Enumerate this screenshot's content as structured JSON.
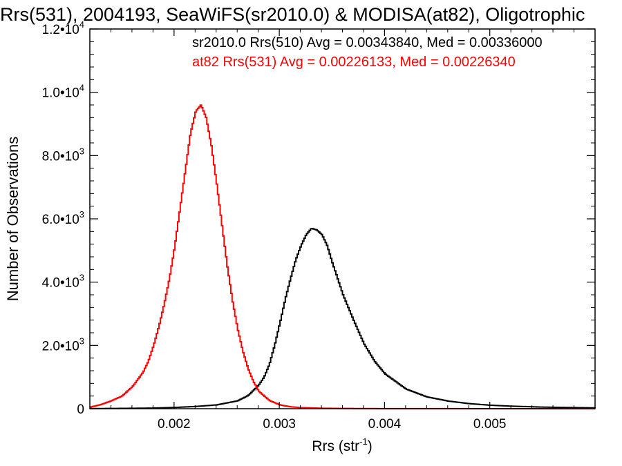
{
  "chart_data": {
    "type": "line",
    "title": "Rrs(531), 2004193, SeaWiFS(sr2010.0) & MODISA(at82), Oligotrophic",
    "xlabel": "Rrs (str",
    "xlabel_sup": "-1",
    "xlabel_end": ")",
    "ylabel": "Number of Observations",
    "xlim": [
      0.0012,
      0.006
    ],
    "ylim": [
      0,
      12000
    ],
    "x_ticks": [
      {
        "value": 0.002,
        "label": "0.002"
      },
      {
        "value": 0.003,
        "label": "0.003"
      },
      {
        "value": 0.004,
        "label": "0.004"
      },
      {
        "value": 0.005,
        "label": "0.005"
      }
    ],
    "y_ticks": [
      {
        "value": 0,
        "mantissa": "0",
        "exp": ""
      },
      {
        "value": 2000,
        "mantissa": "2.0•10",
        "exp": "3"
      },
      {
        "value": 4000,
        "mantissa": "4.0•10",
        "exp": "3"
      },
      {
        "value": 6000,
        "mantissa": "6.0•10",
        "exp": "3"
      },
      {
        "value": 8000,
        "mantissa": "8.0•10",
        "exp": "3"
      },
      {
        "value": 10000,
        "mantissa": "1.0•10",
        "exp": "4"
      },
      {
        "value": 12000,
        "mantissa": "1.2•10",
        "exp": "4"
      }
    ],
    "grid": false,
    "legend_position": "top-right",
    "series": [
      {
        "name": "sr2010.0 Rrs(510) Avg = 0.00343840, Med = 0.00336000",
        "color": "#000000",
        "style": "step",
        "x": [
          0.00125,
          0.0015,
          0.0018,
          0.002,
          0.0022,
          0.0024,
          0.0026,
          0.0027,
          0.0028,
          0.00285,
          0.0029,
          0.00295,
          0.003,
          0.00305,
          0.0031,
          0.00315,
          0.0032,
          0.00325,
          0.0033,
          0.00335,
          0.0034,
          0.00345,
          0.0035,
          0.00355,
          0.0036,
          0.0037,
          0.0038,
          0.0039,
          0.004,
          0.0042,
          0.0044,
          0.0046,
          0.0048,
          0.005,
          0.0052,
          0.0055,
          0.0058,
          0.006
        ],
        "y": [
          5,
          10,
          20,
          40,
          70,
          120,
          250,
          420,
          750,
          1000,
          1400,
          2000,
          2700,
          3450,
          4100,
          4700,
          5150,
          5500,
          5700,
          5650,
          5500,
          5150,
          4600,
          4100,
          3600,
          2800,
          2050,
          1500,
          1100,
          620,
          370,
          240,
          160,
          110,
          80,
          50,
          35,
          25
        ]
      },
      {
        "name": "at82 Rrs(531) Avg = 0.00226133, Med = 0.00226340",
        "color": "#ff0000",
        "style": "step",
        "x": [
          0.0012,
          0.0013,
          0.0014,
          0.0015,
          0.0016,
          0.0017,
          0.00175,
          0.0018,
          0.00185,
          0.0019,
          0.00195,
          0.002,
          0.00205,
          0.0021,
          0.00215,
          0.0022,
          0.00225,
          0.0023,
          0.00235,
          0.0024,
          0.00245,
          0.0025,
          0.00255,
          0.0026,
          0.00265,
          0.0027,
          0.00275,
          0.0028,
          0.0029,
          0.003,
          0.0031,
          0.0032,
          0.0034,
          0.0036,
          0.004,
          0.005,
          0.006
        ],
        "y": [
          50,
          130,
          250,
          400,
          700,
          1150,
          1500,
          2000,
          2600,
          3300,
          4100,
          5100,
          6300,
          7500,
          8700,
          9400,
          9600,
          9200,
          8300,
          7100,
          5800,
          4500,
          3400,
          2500,
          1800,
          1250,
          850,
          550,
          260,
          120,
          60,
          35,
          15,
          8,
          3,
          1,
          1
        ]
      }
    ]
  }
}
